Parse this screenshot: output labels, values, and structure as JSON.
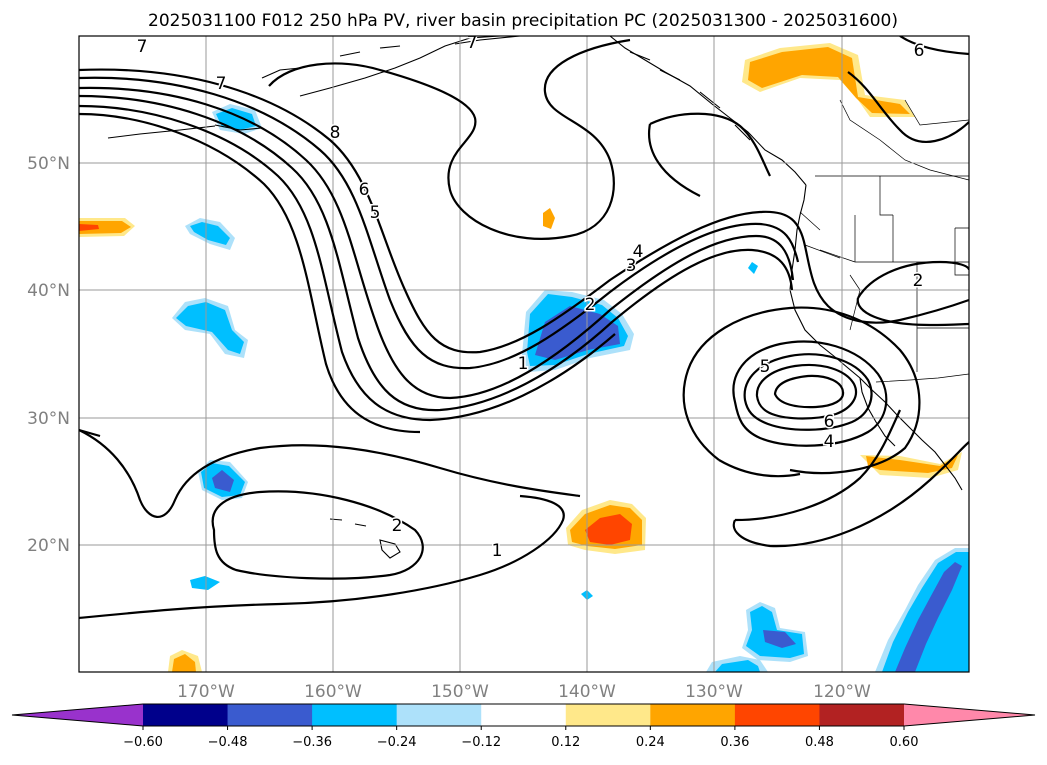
{
  "title": "2025031100 F012 250 hPa PV, river basin precipitation PC (2025031300 - 2025031600)",
  "map": {
    "lat_labels": [
      "50°N",
      "40°N",
      "30°N",
      "20°N"
    ],
    "lon_labels": [
      "170°W",
      "160°W",
      "150°W",
      "140°W",
      "130°W",
      "120°W"
    ],
    "extent": {
      "lon_min": -180,
      "lon_max": -110,
      "lat_min": 10,
      "lat_max": 60
    },
    "gridlines": true,
    "features": [
      "coastlines",
      "country-borders",
      "state-borders"
    ]
  },
  "pv_contour_labels": [
    {
      "text": "7"
    },
    {
      "text": "7"
    },
    {
      "text": "7"
    },
    {
      "text": "8"
    },
    {
      "text": "6"
    },
    {
      "text": "5"
    },
    {
      "text": "4"
    },
    {
      "text": "3"
    },
    {
      "text": "2"
    },
    {
      "text": "1"
    },
    {
      "text": "5"
    },
    {
      "text": "6"
    },
    {
      "text": "4"
    },
    {
      "text": "2"
    },
    {
      "text": "6"
    },
    {
      "text": "2"
    },
    {
      "text": "1"
    }
  ],
  "colorbar": {
    "ticks": [
      "−0.60",
      "−0.48",
      "−0.36",
      "−0.24",
      "−0.12",
      "0.12",
      "0.24",
      "0.36",
      "0.48",
      "0.60"
    ],
    "colors": [
      "#9932CC",
      "#00008B",
      "#3A5BCF",
      "#00BFFF",
      "#ADE1FA",
      "#FFFFFF",
      "#FFE88A",
      "#FFA500",
      "#FF4500",
      "#B22222",
      "#FF88AA"
    ],
    "extend": "both"
  }
}
